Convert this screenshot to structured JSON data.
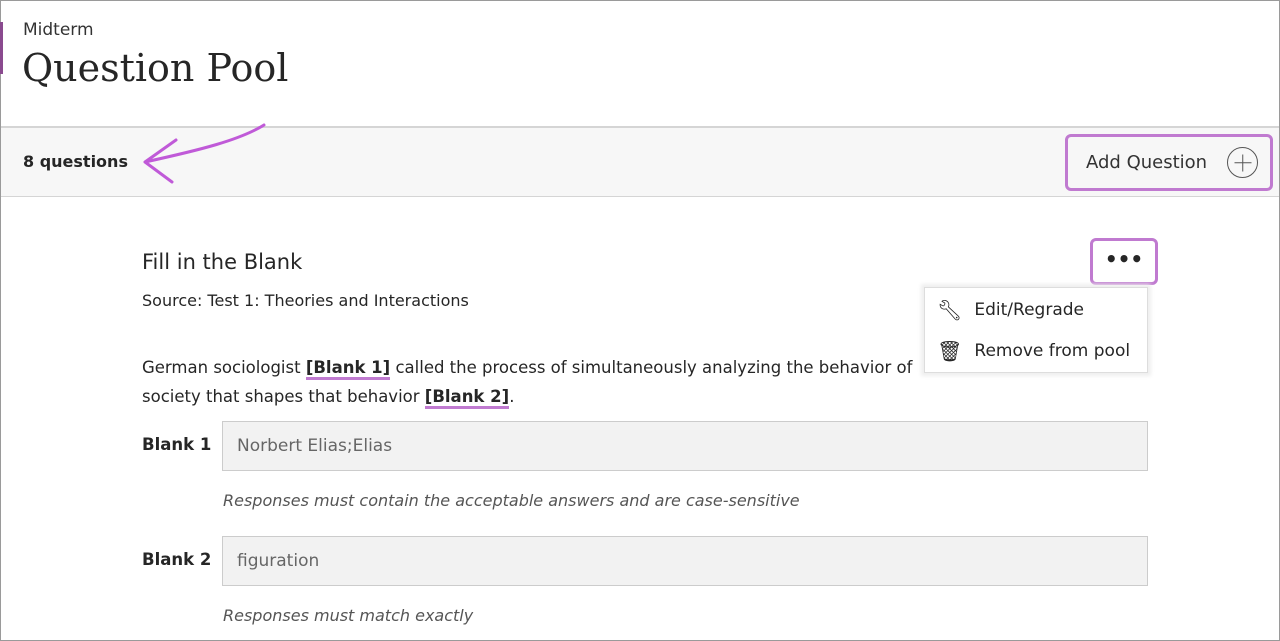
{
  "header": {
    "breadcrumb": "Midterm",
    "title": "Question Pool"
  },
  "toolbar": {
    "count": "8 questions",
    "add_question": "Add Question"
  },
  "question": {
    "type": "Fill in the Blank",
    "source": "Source: Test 1: Theories and Interactions",
    "text_parts": [
      "German sociologist ",
      "[Blank 1]",
      " called the process of simultaneously analyzing the behavior of ",
      "society that shapes that behavior ",
      "[Blank 2]",
      "."
    ],
    "blanks": [
      {
        "label": "Blank 1",
        "value": "Norbert Elias;Elias",
        "hint": "Responses must contain the acceptable answers and are case-sensitive"
      },
      {
        "label": "Blank 2",
        "value": "figuration",
        "hint": "Responses must match exactly"
      }
    ]
  },
  "menu": {
    "more": "•••",
    "items": [
      {
        "label": "Edit/Regrade",
        "icon": "wrench-icon"
      },
      {
        "label": "Remove from pool",
        "icon": "trash-icon"
      }
    ]
  },
  "annotation_color": "#c07ad0"
}
